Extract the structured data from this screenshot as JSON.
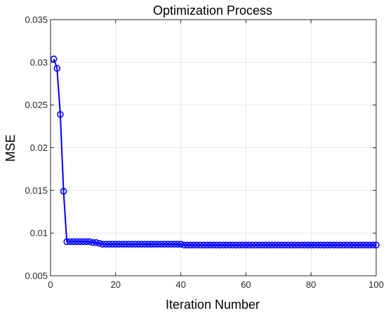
{
  "chart_data": {
    "type": "line",
    "title": "Optimization Process",
    "xlabel": "Iteration Number",
    "ylabel": "MSE",
    "xlim": [
      0,
      100
    ],
    "ylim": [
      0.005,
      0.035
    ],
    "xticks": [
      0,
      20,
      40,
      60,
      80,
      100
    ],
    "xtick_labels": [
      "0",
      "20",
      "40",
      "60",
      "80",
      "100"
    ],
    "yticks": [
      0.005,
      0.01,
      0.015,
      0.02,
      0.025,
      0.03,
      0.035
    ],
    "ytick_labels": [
      "0.005",
      "0.01",
      "0.015",
      "0.02",
      "0.025",
      "0.03",
      "0.035"
    ],
    "grid": true,
    "marker": "circle",
    "color": "#0000ff",
    "series": [
      {
        "x": [
          1,
          2,
          3,
          4,
          5,
          6,
          7,
          8,
          9,
          10,
          11,
          12,
          13,
          14,
          15,
          16,
          17,
          18,
          19,
          20,
          21,
          22,
          23,
          24,
          25,
          26,
          27,
          28,
          29,
          30,
          31,
          32,
          33,
          34,
          35,
          36,
          37,
          38,
          39,
          40,
          41,
          42,
          43,
          44,
          45,
          46,
          47,
          48,
          49,
          50,
          51,
          52,
          53,
          54,
          55,
          56,
          57,
          58,
          59,
          60,
          61,
          62,
          63,
          64,
          65,
          66,
          67,
          68,
          69,
          70,
          71,
          72,
          73,
          74,
          75,
          76,
          77,
          78,
          79,
          80,
          81,
          82,
          83,
          84,
          85,
          86,
          87,
          88,
          89,
          90,
          91,
          92,
          93,
          94,
          95,
          96,
          97,
          98,
          99,
          100
        ],
        "y": [
          0.0304,
          0.0293,
          0.0239,
          0.0149,
          0.009,
          0.009,
          0.009,
          0.009,
          0.009,
          0.009,
          0.009,
          0.009,
          0.0089,
          0.0089,
          0.0088,
          0.0087,
          0.0087,
          0.0087,
          0.0087,
          0.0087,
          0.0087,
          0.0087,
          0.0087,
          0.0087,
          0.0087,
          0.0087,
          0.0087,
          0.0087,
          0.0087,
          0.0087,
          0.0087,
          0.0087,
          0.0087,
          0.0087,
          0.0087,
          0.0087,
          0.0087,
          0.0087,
          0.0087,
          0.0087,
          0.0086,
          0.0086,
          0.0086,
          0.0086,
          0.0086,
          0.0086,
          0.0086,
          0.0086,
          0.0086,
          0.0086,
          0.0086,
          0.0086,
          0.0086,
          0.0086,
          0.0086,
          0.0086,
          0.0086,
          0.0086,
          0.0086,
          0.0086,
          0.0086,
          0.0086,
          0.0086,
          0.0086,
          0.0086,
          0.0086,
          0.0086,
          0.0086,
          0.0086,
          0.0086,
          0.0086,
          0.0086,
          0.0086,
          0.0086,
          0.0086,
          0.0086,
          0.0086,
          0.0086,
          0.0086,
          0.0086,
          0.0086,
          0.0086,
          0.0086,
          0.0086,
          0.0086,
          0.0086,
          0.0086,
          0.0086,
          0.0086,
          0.0086,
          0.0086,
          0.0086,
          0.0086,
          0.0086,
          0.0086,
          0.0086,
          0.0086,
          0.0086,
          0.0086,
          0.0086
        ]
      }
    ]
  }
}
